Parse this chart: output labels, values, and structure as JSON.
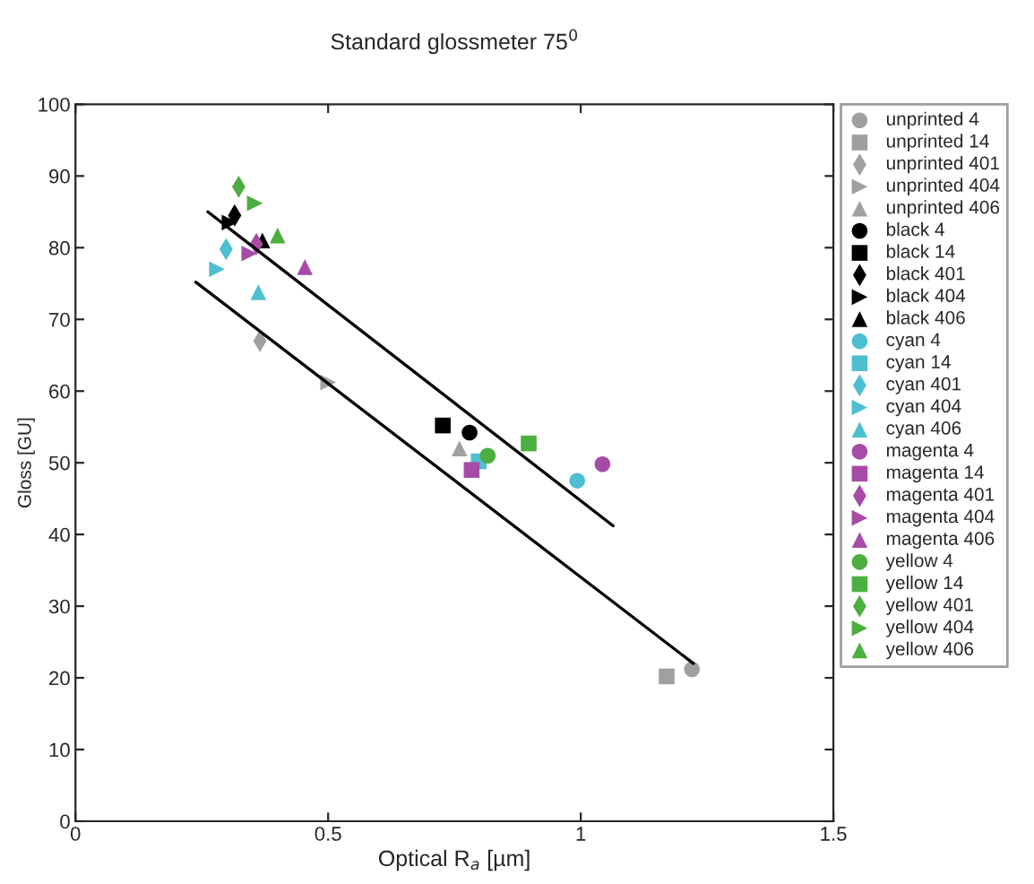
{
  "chart_data": {
    "type": "scatter",
    "title": "Standard glossmeter 75$^{0}$",
    "xlabel": "Optical R$_{a}$ [µm]",
    "ylabel": "Gloss [GU]",
    "xlim": [
      0,
      1.5
    ],
    "xticks": [
      0,
      0.5,
      1,
      1.5
    ],
    "ylim": [
      0,
      100
    ],
    "yticks": [
      0,
      10,
      20,
      30,
      40,
      50,
      60,
      70,
      80,
      90,
      100
    ],
    "grid": false,
    "legend": "right",
    "series": [
      {
        "name": "unprinted 4",
        "color": "#a0a0a0",
        "marker": "circle",
        "x": [
          1.22
        ],
        "values": [
          21.2
        ]
      },
      {
        "name": "unprinted 14",
        "color": "#a0a0a0",
        "marker": "square",
        "x": [
          1.17
        ],
        "values": [
          20.2
        ]
      },
      {
        "name": "unprinted 401",
        "color": "#a0a0a0",
        "marker": "diamond",
        "x": [
          0.365
        ],
        "values": [
          67
        ]
      },
      {
        "name": "unprinted 404",
        "color": "#a0a0a0",
        "marker": "triangle-right",
        "x": [
          0.5
        ],
        "values": [
          61.2
        ]
      },
      {
        "name": "unprinted 406",
        "color": "#a0a0a0",
        "marker": "triangle",
        "x": [
          0.76
        ],
        "values": [
          52
        ]
      },
      {
        "name": "black 4",
        "color": "#000000",
        "marker": "circle",
        "x": [
          0.78
        ],
        "values": [
          54.2
        ]
      },
      {
        "name": "black 14",
        "color": "#000000",
        "marker": "square",
        "x": [
          0.727
        ],
        "values": [
          55.2
        ]
      },
      {
        "name": "black 401",
        "color": "#000000",
        "marker": "diamond",
        "x": [
          0.315
        ],
        "values": [
          84.5
        ]
      },
      {
        "name": "black 404",
        "color": "#000000",
        "marker": "triangle-right",
        "x": [
          0.305
        ],
        "values": [
          83.5
        ]
      },
      {
        "name": "black 406",
        "color": "#000000",
        "marker": "triangle",
        "x": [
          0.37
        ],
        "values": [
          81
        ]
      },
      {
        "name": "cyan 4",
        "color": "#4dbfd0",
        "marker": "circle",
        "x": [
          0.993
        ],
        "values": [
          47.5
        ]
      },
      {
        "name": "cyan 14",
        "color": "#4dbfd0",
        "marker": "square",
        "x": [
          0.798
        ],
        "values": [
          50.2
        ]
      },
      {
        "name": "cyan 401",
        "color": "#4dbfd0",
        "marker": "diamond",
        "x": [
          0.298
        ],
        "values": [
          79.8
        ]
      },
      {
        "name": "cyan 404",
        "color": "#4dbfd0",
        "marker": "triangle-right",
        "x": [
          0.28
        ],
        "values": [
          77
        ]
      },
      {
        "name": "cyan 406",
        "color": "#4dbfd0",
        "marker": "triangle",
        "x": [
          0.362
        ],
        "values": [
          73.8
        ]
      },
      {
        "name": "magenta 4",
        "color": "#a64ca6",
        "marker": "circle",
        "x": [
          1.043
        ],
        "values": [
          49.8
        ]
      },
      {
        "name": "magenta 14",
        "color": "#a64ca6",
        "marker": "square",
        "x": [
          0.784
        ],
        "values": [
          49
        ]
      },
      {
        "name": "magenta 401",
        "color": "#a64ca6",
        "marker": "diamond",
        "x": [
          0.358
        ],
        "values": [
          80.5
        ]
      },
      {
        "name": "magenta 404",
        "color": "#a64ca6",
        "marker": "triangle-right",
        "x": [
          0.344
        ],
        "values": [
          79.2
        ]
      },
      {
        "name": "magenta 406",
        "color": "#a64ca6",
        "marker": "triangle",
        "x": [
          0.454
        ],
        "values": [
          77.3
        ]
      },
      {
        "name": "yellow 4",
        "color": "#4caf3f",
        "marker": "circle",
        "x": [
          0.816
        ],
        "values": [
          51
        ]
      },
      {
        "name": "yellow 14",
        "color": "#4caf3f",
        "marker": "square",
        "x": [
          0.897
        ],
        "values": [
          52.7
        ]
      },
      {
        "name": "yellow 401",
        "color": "#4caf3f",
        "marker": "diamond",
        "x": [
          0.323
        ],
        "values": [
          88.5
        ]
      },
      {
        "name": "yellow 404",
        "color": "#4caf3f",
        "marker": "triangle-right",
        "x": [
          0.355
        ],
        "values": [
          86.2
        ]
      },
      {
        "name": "yellow 406",
        "color": "#4caf3f",
        "marker": "triangle",
        "x": [
          0.4
        ],
        "values": [
          81.7
        ]
      },
      {
        "type": "line",
        "color": "#000000",
        "marker": "none",
        "x": [
          0.262,
          1.064
        ],
        "values": [
          85,
          41.2
        ]
      },
      {
        "type": "line",
        "color": "#000000",
        "marker": "none",
        "x": [
          0.238,
          1.223
        ],
        "values": [
          75.2,
          22
        ]
      }
    ]
  }
}
